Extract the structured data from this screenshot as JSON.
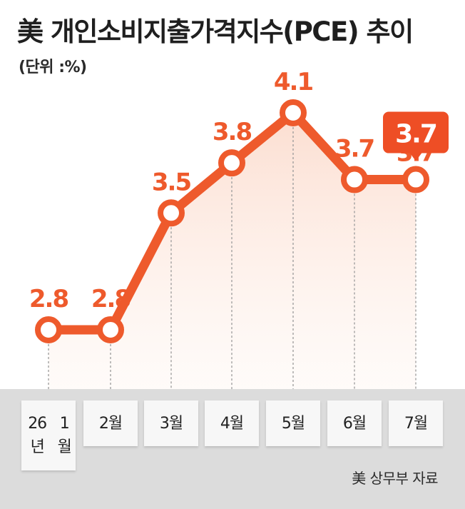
{
  "title": "美 개인소비지출가격지수(PCE) 추이",
  "unit": "(단위 :%)",
  "source": "美 상무부 자료",
  "colors": {
    "line": "#ee5a2c",
    "marker_fill": "#ffffff",
    "highlight": "#ee4e25",
    "footer": "#dcdcdc"
  },
  "chart_data": {
    "type": "line",
    "categories": [
      "26년\n1월",
      "2월",
      "3월",
      "4월",
      "5월",
      "6월",
      "7월"
    ],
    "values": [
      2.8,
      2.8,
      3.5,
      3.8,
      4.1,
      3.7,
      3.7
    ],
    "data_labels": [
      "2.8",
      "2.8",
      "3.5",
      "3.8",
      "4.1",
      "3.7",
      "3.7"
    ],
    "highlight_label": "3.7",
    "highlight_index": 6,
    "title": "美 개인소비지출가격지수(PCE) 추이",
    "xlabel": "",
    "ylabel": "",
    "grid": false
  }
}
